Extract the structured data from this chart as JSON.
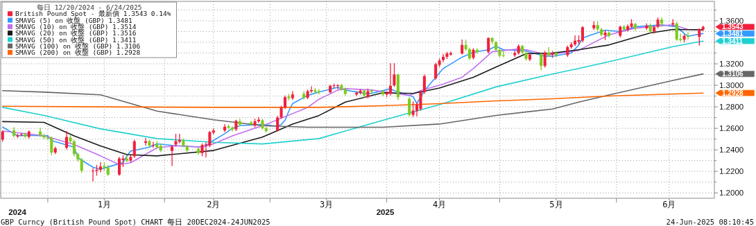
{
  "chart_data": {
    "type": "candlestick",
    "legend_title": "每日 12/20/2024 - 6/24/2025",
    "legend": "top left",
    "grid": true,
    "xlim": [
      "2024-12-19T12:00",
      "2025-06-27"
    ],
    "ylim": [
      1.195,
      1.378
    ],
    "xticks": [
      {
        "value": "2025-01-01",
        "label": null
      },
      {
        "value": "2025-01-16",
        "label": "1月"
      },
      {
        "value": "2025-02-01",
        "label": null
      },
      {
        "value": "2025-02-14",
        "label": "2月"
      },
      {
        "value": "2025-03-01",
        "label": null
      },
      {
        "value": "2025-03-16",
        "label": "3月"
      },
      {
        "value": "2025-04-01",
        "label": null
      },
      {
        "value": "2025-04-15",
        "label": "4月"
      },
      {
        "value": "2025-05-01",
        "label": null
      },
      {
        "value": "2025-05-16",
        "label": "5月"
      },
      {
        "value": "2025-06-01",
        "label": null
      },
      {
        "value": "2025-06-15",
        "label": "6月"
      }
    ],
    "yticks": [
      {
        "value": 1.2,
        "label": "1.2000"
      },
      {
        "value": 1.21,
        "label": null
      },
      {
        "value": 1.22,
        "label": "1.2200"
      },
      {
        "value": 1.23,
        "label": null
      },
      {
        "value": 1.24,
        "label": "1.2400"
      },
      {
        "value": 1.25,
        "label": null
      },
      {
        "value": 1.26,
        "label": "1.2600"
      },
      {
        "value": 1.27,
        "label": null
      },
      {
        "value": 1.28,
        "label": "1.2800"
      },
      {
        "value": 1.29,
        "label": null
      },
      {
        "value": 1.3,
        "label": "1.3000"
      },
      {
        "value": 1.31,
        "label": null
      },
      {
        "value": 1.32,
        "label": "1.3200"
      },
      {
        "value": 1.33,
        "label": null
      },
      {
        "value": 1.34,
        "label": null
      },
      {
        "value": 1.35,
        "label": null
      },
      {
        "value": 1.36,
        "label": "1.3600"
      },
      {
        "value": 1.37,
        "label": null
      }
    ],
    "series": [
      {
        "type": "candlestick",
        "name": "British Pound Spot - 最新價 1.3543 0.14%",
        "color": "#f0203c",
        "x": [
          "2024-12-20",
          "2024-12-23",
          "2024-12-24",
          "2024-12-25",
          "2024-12-26",
          "2024-12-27",
          "2024-12-30",
          "2024-12-31",
          "2025-01-01",
          "2025-01-02",
          "2025-01-03",
          "2025-01-06",
          "2025-01-07",
          "2025-01-08",
          "2025-01-09",
          "2025-01-10",
          "2025-01-13",
          "2025-01-14",
          "2025-01-15",
          "2025-01-16",
          "2025-01-17",
          "2025-01-20",
          "2025-01-21",
          "2025-01-22",
          "2025-01-23",
          "2025-01-24",
          "2025-01-27",
          "2025-01-28",
          "2025-01-29",
          "2025-01-30",
          "2025-01-31",
          "2025-02-03",
          "2025-02-04",
          "2025-02-05",
          "2025-02-06",
          "2025-02-07",
          "2025-02-10",
          "2025-02-11",
          "2025-02-12",
          "2025-02-13",
          "2025-02-14",
          "2025-02-17",
          "2025-02-18",
          "2025-02-19",
          "2025-02-20",
          "2025-02-21",
          "2025-02-24",
          "2025-02-25",
          "2025-02-26",
          "2025-02-27",
          "2025-02-28",
          "2025-03-03",
          "2025-03-04",
          "2025-03-05",
          "2025-03-06",
          "2025-03-07",
          "2025-03-10",
          "2025-03-11",
          "2025-03-12",
          "2025-03-13",
          "2025-03-14",
          "2025-03-17",
          "2025-03-18",
          "2025-03-19",
          "2025-03-20",
          "2025-03-21",
          "2025-03-24",
          "2025-03-25",
          "2025-03-26",
          "2025-03-27",
          "2025-03-28",
          "2025-03-31",
          "2025-04-01",
          "2025-04-02",
          "2025-04-03",
          "2025-04-04",
          "2025-04-07",
          "2025-04-08",
          "2025-04-09",
          "2025-04-10",
          "2025-04-11",
          "2025-04-14",
          "2025-04-15",
          "2025-04-16",
          "2025-04-17",
          "2025-04-18",
          "2025-04-21",
          "2025-04-22",
          "2025-04-23",
          "2025-04-24",
          "2025-04-25",
          "2025-04-28",
          "2025-04-29",
          "2025-04-30",
          "2025-05-01",
          "2025-05-02",
          "2025-05-05",
          "2025-05-06",
          "2025-05-07",
          "2025-05-08",
          "2025-05-09",
          "2025-05-12",
          "2025-05-13",
          "2025-05-14",
          "2025-05-15",
          "2025-05-16",
          "2025-05-19",
          "2025-05-20",
          "2025-05-21",
          "2025-05-22",
          "2025-05-23",
          "2025-05-26",
          "2025-05-27",
          "2025-05-28",
          "2025-05-29",
          "2025-05-30",
          "2025-06-02",
          "2025-06-03",
          "2025-06-04",
          "2025-06-05",
          "2025-06-06",
          "2025-06-09",
          "2025-06-10",
          "2025-06-11",
          "2025-06-12",
          "2025-06-13",
          "2025-06-16",
          "2025-06-17",
          "2025-06-18",
          "2025-06-19",
          "2025-06-20",
          "2025-06-23",
          "2025-06-24"
        ],
        "ohlc": [
          [
            1.2495,
            1.258,
            1.2475,
            1.257
          ],
          [
            1.2581,
            1.261,
            1.2515,
            1.2531
          ],
          [
            1.2525,
            1.255,
            1.251,
            1.2535
          ],
          [
            1.254,
            1.2555,
            1.253,
            1.2545
          ],
          [
            1.2545,
            1.256,
            1.251,
            1.2525
          ],
          [
            1.252,
            1.258,
            1.2505,
            1.257
          ],
          [
            1.257,
            1.2605,
            1.252,
            1.2535
          ],
          [
            1.2535,
            1.255,
            1.25,
            1.2515
          ],
          [
            1.2515,
            1.2525,
            1.2495,
            1.2505
          ],
          [
            1.251,
            1.2525,
            1.235,
            1.2375
          ],
          [
            1.2375,
            1.243,
            1.236,
            1.2415
          ],
          [
            1.242,
            1.2575,
            1.2405,
            1.252
          ],
          [
            1.2515,
            1.254,
            1.246,
            1.248
          ],
          [
            1.248,
            1.249,
            1.234,
            1.236
          ],
          [
            1.236,
            1.2375,
            1.229,
            1.231
          ],
          [
            1.231,
            1.2325,
            1.2185,
            1.2205
          ],
          [
            1.22,
            1.223,
            1.2106,
            1.2205
          ],
          [
            1.2205,
            1.226,
            1.216,
            1.2215
          ],
          [
            1.2215,
            1.2285,
            1.219,
            1.2245
          ],
          [
            1.225,
            1.228,
            1.221,
            1.2235
          ],
          [
            1.2235,
            1.226,
            1.216,
            1.217
          ],
          [
            1.217,
            1.2335,
            1.216,
            1.232
          ],
          [
            1.2305,
            1.235,
            1.224,
            1.232
          ],
          [
            1.232,
            1.2345,
            1.2285,
            1.23
          ],
          [
            1.23,
            1.235,
            1.2285,
            1.2335
          ],
          [
            1.234,
            1.2495,
            1.2325,
            1.248
          ],
          [
            1.2465,
            1.251,
            1.244,
            1.248
          ],
          [
            1.248,
            1.2495,
            1.2425,
            1.244
          ],
          [
            1.244,
            1.2475,
            1.242,
            1.2445
          ],
          [
            1.245,
            1.248,
            1.241,
            1.2425
          ],
          [
            1.2438,
            1.246,
            1.238,
            1.2394
          ],
          [
            1.239,
            1.2445,
            1.225,
            1.243
          ],
          [
            1.245,
            1.255,
            1.243,
            1.248
          ],
          [
            1.2475,
            1.255,
            1.246,
            1.249
          ],
          [
            1.249,
            1.2505,
            1.2425,
            1.244
          ],
          [
            1.243,
            1.2445,
            1.238,
            1.2395
          ],
          [
            1.241,
            1.242,
            1.2355,
            1.237
          ],
          [
            1.237,
            1.246,
            1.234,
            1.2445
          ],
          [
            1.244,
            1.247,
            1.233,
            1.245
          ],
          [
            1.244,
            1.2575,
            1.2425,
            1.2565
          ],
          [
            1.256,
            1.26,
            1.2545,
            1.258
          ],
          [
            1.258,
            1.264,
            1.2565,
            1.2615
          ],
          [
            1.262,
            1.2635,
            1.259,
            1.2605
          ],
          [
            1.2605,
            1.262,
            1.257,
            1.259
          ],
          [
            1.259,
            1.268,
            1.2575,
            1.267
          ],
          [
            1.2665,
            1.269,
            1.262,
            1.2635
          ],
          [
            1.2655,
            1.267,
            1.2625,
            1.264
          ],
          [
            1.2625,
            1.269,
            1.261,
            1.2665
          ],
          [
            1.2665,
            1.2706,
            1.265,
            1.268
          ],
          [
            1.2675,
            1.269,
            1.259,
            1.26
          ],
          [
            1.26,
            1.2615,
            1.256,
            1.2575
          ],
          [
            1.258,
            1.2715,
            1.257,
            1.27
          ],
          [
            1.27,
            1.281,
            1.269,
            1.2795
          ],
          [
            1.2795,
            1.2905,
            1.278,
            1.289
          ],
          [
            1.2895,
            1.292,
            1.286,
            1.288
          ],
          [
            1.288,
            1.2945,
            1.2865,
            1.2915
          ],
          [
            1.292,
            1.2945,
            1.287,
            1.2885
          ],
          [
            1.2885,
            1.296,
            1.287,
            1.2945
          ],
          [
            1.2945,
            1.299,
            1.293,
            1.2955
          ],
          [
            1.2955,
            1.2975,
            1.2925,
            1.294
          ],
          [
            1.2945,
            1.2965,
            1.2915,
            1.2935
          ],
          [
            1.2935,
            1.3005,
            1.2925,
            1.2995
          ],
          [
            1.2995,
            1.3015,
            1.2975,
            1.3
          ],
          [
            1.2995,
            1.301,
            1.2965,
            1.3
          ],
          [
            1.3,
            1.3015,
            1.295,
            1.2965
          ],
          [
            1.2965,
            1.298,
            1.2905,
            1.292
          ],
          [
            1.2915,
            1.2945,
            1.29,
            1.293
          ],
          [
            1.293,
            1.2965,
            1.2915,
            1.295
          ],
          [
            1.295,
            1.296,
            1.2885,
            1.2905
          ],
          [
            1.289,
            1.297,
            1.288,
            1.2945
          ],
          [
            1.295,
            1.2965,
            1.2925,
            1.294
          ],
          [
            1.2945,
            1.2955,
            1.29,
            1.2915
          ],
          [
            1.2915,
            1.2945,
            1.289,
            1.2925
          ],
          [
            1.292,
            1.3205,
            1.2905,
            1.2995
          ],
          [
            1.3,
            1.3205,
            1.2985,
            1.31
          ],
          [
            1.31,
            1.311,
            1.2865,
            1.289
          ],
          [
            1.2875,
            1.289,
            1.271,
            1.2725
          ],
          [
            1.2725,
            1.285,
            1.2705,
            1.2765
          ],
          [
            1.276,
            1.284,
            1.271,
            1.282
          ],
          [
            1.278,
            1.295,
            1.2765,
            1.2935
          ],
          [
            1.2935,
            1.31,
            1.292,
            1.3085
          ],
          [
            1.3065,
            1.321,
            1.305,
            1.3195
          ],
          [
            1.319,
            1.325,
            1.317,
            1.323
          ],
          [
            1.3235,
            1.329,
            1.3215,
            1.3265
          ],
          [
            1.3265,
            1.331,
            1.3245,
            1.3295
          ],
          [
            1.3285,
            1.3315,
            1.3275,
            1.33
          ],
          [
            1.3295,
            1.3425,
            1.3285,
            1.3375
          ],
          [
            1.3375,
            1.3425,
            1.332,
            1.3335
          ],
          [
            1.3335,
            1.335,
            1.3235,
            1.325
          ],
          [
            1.3255,
            1.3345,
            1.324,
            1.333
          ],
          [
            1.333,
            1.3345,
            1.3295,
            1.331
          ],
          [
            1.331,
            1.3445,
            1.3295,
            1.344
          ],
          [
            1.344,
            1.3445,
            1.3385,
            1.3405
          ],
          [
            1.34,
            1.341,
            1.3315,
            1.333
          ],
          [
            1.333,
            1.334,
            1.326,
            1.3275
          ],
          [
            1.328,
            1.332,
            1.326,
            1.3275
          ],
          [
            1.328,
            1.332,
            1.3265,
            1.33
          ],
          [
            1.33,
            1.338,
            1.3285,
            1.3365
          ],
          [
            1.3365,
            1.3375,
            1.329,
            1.3305
          ],
          [
            1.33,
            1.3315,
            1.323,
            1.3245
          ],
          [
            1.324,
            1.33,
            1.3225,
            1.3285
          ],
          [
            1.329,
            1.33,
            1.314,
            1.318
          ],
          [
            1.318,
            1.332,
            1.3165,
            1.3305
          ],
          [
            1.3305,
            1.3355,
            1.3265,
            1.328
          ],
          [
            1.3285,
            1.332,
            1.3255,
            1.33
          ],
          [
            1.33,
            1.3315,
            1.3265,
            1.328
          ],
          [
            1.328,
            1.337,
            1.3265,
            1.3355
          ],
          [
            1.3355,
            1.34,
            1.334,
            1.338
          ],
          [
            1.338,
            1.3465,
            1.3365,
            1.3415
          ],
          [
            1.3405,
            1.3465,
            1.338,
            1.342
          ],
          [
            1.3415,
            1.355,
            1.34,
            1.354
          ],
          [
            1.353,
            1.3595,
            1.3515,
            1.356
          ],
          [
            1.356,
            1.3595,
            1.3505,
            1.352
          ],
          [
            1.352,
            1.3535,
            1.3455,
            1.347
          ],
          [
            1.3465,
            1.351,
            1.342,
            1.349
          ],
          [
            1.349,
            1.35,
            1.3445,
            1.346
          ],
          [
            1.346,
            1.3555,
            1.3445,
            1.3545
          ],
          [
            1.3545,
            1.356,
            1.3505,
            1.352
          ],
          [
            1.3515,
            1.3565,
            1.35,
            1.355
          ],
          [
            1.3545,
            1.3615,
            1.353,
            1.3575
          ],
          [
            1.357,
            1.358,
            1.3505,
            1.353
          ],
          [
            1.353,
            1.3575,
            1.3515,
            1.3555
          ],
          [
            1.3555,
            1.3575,
            1.3485,
            1.35
          ],
          [
            1.35,
            1.3555,
            1.348,
            1.354
          ],
          [
            1.3545,
            1.363,
            1.353,
            1.361
          ],
          [
            1.361,
            1.363,
            1.3545,
            1.3575
          ],
          [
            1.357,
            1.3615,
            1.3545,
            1.358
          ],
          [
            1.3575,
            1.359,
            1.3415,
            1.3425
          ],
          [
            1.343,
            1.348,
            1.3405,
            1.342
          ],
          [
            1.3425,
            1.3475,
            1.34,
            1.346
          ],
          [
            1.346,
            1.3495,
            1.3425,
            1.345
          ],
          [
            1.345,
            1.353,
            1.337,
            1.352
          ],
          [
            1.352,
            1.3555,
            1.3505,
            1.3543
          ]
        ],
        "colors": [
          "#f0203c",
          "#7ccb1c",
          "#f0203c",
          "#f0203c",
          "#7ccb1c",
          "#f0203c",
          "#7ccb1c",
          "#7ccb1c",
          "#7ccb1c",
          "#7ccb1c",
          "#f0203c",
          "#f0203c",
          "#7ccb1c",
          "#7ccb1c",
          "#7ccb1c",
          "#7ccb1c",
          "#f0203c",
          "#f0203c",
          "#f0203c",
          "#7ccb1c",
          "#7ccb1c",
          "#f0203c",
          "#f0203c",
          "#7ccb1c",
          "#f0203c",
          "#f0203c",
          "#f0203c",
          "#7ccb1c",
          "#f0203c",
          "#7ccb1c",
          "#7ccb1c",
          "#f0203c",
          "#f0203c",
          "#f0203c",
          "#7ccb1c",
          "#7ccb1c",
          "#7ccb1c",
          "#f0203c",
          "#f0203c",
          "#f0203c",
          "#f0203c",
          "#f0203c",
          "#7ccb1c",
          "#7ccb1c",
          "#f0203c",
          "#7ccb1c",
          "#7ccb1c",
          "#f0203c",
          "#f0203c",
          "#7ccb1c",
          "#7ccb1c",
          "#f0203c",
          "#f0203c",
          "#f0203c",
          "#7ccb1c",
          "#f0203c",
          "#7ccb1c",
          "#f0203c",
          "#f0203c",
          "#7ccb1c",
          "#7ccb1c",
          "#f0203c",
          "#f0203c",
          "#f0203c",
          "#7ccb1c",
          "#7ccb1c",
          "#f0203c",
          "#f0203c",
          "#7ccb1c",
          "#f0203c",
          "#7ccb1c",
          "#7ccb1c",
          "#f0203c",
          "#f0203c",
          "#f0203c",
          "#7ccb1c",
          "#7ccb1c",
          "#f0203c",
          "#f0203c",
          "#f0203c",
          "#f0203c",
          "#f0203c",
          "#f0203c",
          "#f0203c",
          "#f0203c",
          "#f0203c",
          "#f0203c",
          "#7ccb1c",
          "#7ccb1c",
          "#f0203c",
          "#7ccb1c",
          "#f0203c",
          "#7ccb1c",
          "#7ccb1c",
          "#7ccb1c",
          "#7ccb1c",
          "#f0203c",
          "#f0203c",
          "#7ccb1c",
          "#7ccb1c",
          "#f0203c",
          "#7ccb1c",
          "#f0203c",
          "#7ccb1c",
          "#f0203c",
          "#7ccb1c",
          "#f0203c",
          "#f0203c",
          "#f0203c",
          "#f0203c",
          "#f0203c",
          "#f0203c",
          "#7ccb1c",
          "#7ccb1c",
          "#f0203c",
          "#7ccb1c",
          "#f0203c",
          "#7ccb1c",
          "#f0203c",
          "#f0203c",
          "#7ccb1c",
          "#f0203c",
          "#7ccb1c",
          "#f0203c",
          "#f0203c",
          "#7ccb1c",
          "#f0203c",
          "#7ccb1c",
          "#7ccb1c",
          "#f0203c",
          "#7ccb1c",
          "#f0203c",
          "#f0203c"
        ]
      },
      {
        "type": "line",
        "name": "SMAVG (5) on 收盤 (GBP) 1.3481",
        "color": "#3399ff",
        "x": [
          "2024-12-20",
          "2024-12-24",
          "2024-12-27",
          "2025-01-01",
          "2025-01-02",
          "2025-01-08",
          "2025-01-09",
          "2025-01-13",
          "2025-01-15",
          "2025-01-16",
          "2025-01-21",
          "2025-01-22",
          "2025-01-23",
          "2025-01-28",
          "2025-01-30",
          "2025-02-04",
          "2025-02-11",
          "2025-02-12",
          "2025-02-14",
          "2025-02-17",
          "2025-02-19",
          "2025-02-21",
          "2025-02-27",
          "2025-03-03",
          "2025-03-04",
          "2025-03-05",
          "2025-03-06",
          "2025-03-07",
          "2025-03-11",
          "2025-03-14",
          "2025-03-19",
          "2025-03-21",
          "2025-03-26",
          "2025-03-28",
          "2025-04-02",
          "2025-04-03",
          "2025-04-08",
          "2025-04-09",
          "2025-04-11",
          "2025-04-16",
          "2025-04-21",
          "2025-04-24",
          "2025-04-28",
          "2025-04-30",
          "2025-05-02",
          "2025-05-08",
          "2025-05-13",
          "2025-05-15",
          "2025-05-20",
          "2025-05-22",
          "2025-05-23",
          "2025-05-29",
          "2025-06-02",
          "2025-06-06",
          "2025-06-13",
          "2025-06-17",
          "2025-06-19",
          "2025-06-20",
          "2025-06-24"
        ],
        "values": [
          1.2612,
          1.2531,
          1.2535,
          1.2531,
          1.2487,
          1.2425,
          1.2325,
          1.2238,
          1.2219,
          1.2231,
          1.2281,
          1.2344,
          1.2388,
          1.2425,
          1.2456,
          1.2438,
          1.2425,
          1.2438,
          1.2488,
          1.255,
          1.26,
          1.2625,
          1.2637,
          1.2619,
          1.2637,
          1.2675,
          1.276,
          1.283,
          1.2906,
          1.2937,
          1.2981,
          1.2956,
          1.2925,
          1.2925,
          1.2969,
          1.295,
          1.2894,
          1.2831,
          1.295,
          1.3156,
          1.3262,
          1.3306,
          1.3331,
          1.3363,
          1.3331,
          1.3319,
          1.3269,
          1.3269,
          1.33,
          1.3375,
          1.344,
          1.3513,
          1.35,
          1.3544,
          1.3563,
          1.3544,
          1.3481,
          1.3456,
          1.3481
        ]
      },
      {
        "type": "line",
        "name": "SMAVG (10) on 收盤 (GBP) 1.3514",
        "color": "#c070f0",
        "x": [
          "2024-12-20",
          "2024-12-31",
          "2025-01-08",
          "2025-01-15",
          "2025-01-20",
          "2025-01-23",
          "2025-01-30",
          "2025-02-04",
          "2025-02-11",
          "2025-02-14",
          "2025-02-19",
          "2025-02-28",
          "2025-03-11",
          "2025-03-14",
          "2025-03-19",
          "2025-03-21",
          "2025-03-28",
          "2025-04-07",
          "2025-04-10",
          "2025-04-16",
          "2025-04-21",
          "2025-04-24",
          "2025-04-29",
          "2025-05-06",
          "2025-05-08",
          "2025-05-14",
          "2025-05-16",
          "2025-05-22",
          "2025-05-23",
          "2025-05-30",
          "2025-06-06",
          "2025-06-16",
          "2025-06-20",
          "2025-06-24"
        ],
        "values": [
          1.2575,
          1.2531,
          1.245,
          1.2344,
          1.2262,
          1.228,
          1.2419,
          1.2438,
          1.2425,
          1.2456,
          1.253,
          1.2637,
          1.2794,
          1.287,
          1.2956,
          1.2969,
          1.2956,
          1.2906,
          1.295,
          1.3012,
          1.3075,
          1.3156,
          1.3312,
          1.3338,
          1.3331,
          1.3281,
          1.3294,
          1.3325,
          1.3344,
          1.3469,
          1.3531,
          1.3563,
          1.3519,
          1.3514
        ]
      },
      {
        "type": "line",
        "name": "SMAVG (20) on 收盤 (GBP) 1.3516",
        "color": "#1a1a1a",
        "x": [
          "2024-12-20",
          "2024-12-31",
          "2025-01-08",
          "2025-01-15",
          "2025-01-22",
          "2025-01-30",
          "2025-02-14",
          "2025-02-27",
          "2025-03-07",
          "2025-03-14",
          "2025-03-21",
          "2025-03-31",
          "2025-04-08",
          "2025-04-15",
          "2025-04-24",
          "2025-04-30",
          "2025-05-08",
          "2025-05-15",
          "2025-05-22",
          "2025-05-30",
          "2025-06-10",
          "2025-06-16",
          "2025-06-24"
        ],
        "values": [
          1.2663,
          1.2656,
          1.253,
          1.2437,
          1.2356,
          1.2344,
          1.2394,
          1.2519,
          1.264,
          1.2719,
          1.2844,
          1.2931,
          1.2925,
          1.2975,
          1.3075,
          1.3169,
          1.3294,
          1.33,
          1.3331,
          1.3375,
          1.3487,
          1.3519,
          1.3516
        ]
      },
      {
        "type": "line",
        "name": "SMAVG (50) on 收盤 (GBP) 1.3411",
        "color": "#20d0d0",
        "x": [
          "2024-12-20",
          "2024-12-31",
          "2025-01-15",
          "2025-01-30",
          "2025-02-14",
          "2025-02-27",
          "2025-03-14",
          "2025-03-31",
          "2025-04-15",
          "2025-04-30",
          "2025-05-15",
          "2025-05-22",
          "2025-05-30",
          "2025-06-16",
          "2025-06-24"
        ],
        "values": [
          1.2795,
          1.272,
          1.2595,
          1.2505,
          1.247,
          1.2455,
          1.2505,
          1.2675,
          1.282,
          1.2985,
          1.3105,
          1.3156,
          1.322,
          1.336,
          1.3411
        ]
      },
      {
        "type": "line",
        "name": "SMAVG (100) on 收盤 (GBP) 1.3106",
        "color": "#666666",
        "x": [
          "2024-12-20",
          "2024-12-31",
          "2025-01-15",
          "2025-01-30",
          "2025-02-14",
          "2025-02-27",
          "2025-03-11",
          "2025-03-31",
          "2025-04-15",
          "2025-04-30",
          "2025-05-15",
          "2025-05-22",
          "2025-05-30",
          "2025-06-16",
          "2025-06-24"
        ],
        "values": [
          1.295,
          1.2937,
          1.2912,
          1.276,
          1.268,
          1.2625,
          1.261,
          1.261,
          1.264,
          1.272,
          1.278,
          1.2844,
          1.291,
          1.3045,
          1.3106
        ]
      },
      {
        "type": "line",
        "name": "SMAVG (200) on 收盤 (GBP) 1.2928",
        "color": "#ff6600",
        "x": [
          "2024-12-20",
          "2025-01-15",
          "2025-02-14",
          "2025-03-14",
          "2025-03-31",
          "2025-04-15",
          "2025-04-30",
          "2025-05-15",
          "2025-05-30",
          "2025-06-24"
        ],
        "values": [
          1.2805,
          1.28,
          1.2795,
          1.2795,
          1.281,
          1.283,
          1.2855,
          1.2875,
          1.29,
          1.2928
        ]
      }
    ],
    "annotations": [
      {
        "text": "1.3543",
        "x": "2025-06-24",
        "y": 1.3543
      },
      {
        "text": "1.3481",
        "x": "2025-06-24",
        "y": 1.3481
      },
      {
        "text": "1.3411",
        "x": "2025-06-24",
        "y": 1.3411
      },
      {
        "text": "1.3106",
        "x": "2025-06-24",
        "y": 1.3106
      },
      {
        "text": "1.2928",
        "x": "2025-06-24",
        "y": 1.2928
      },
      "2024",
      "2025",
      "GBP Curncy (British Pound Spot) CHART 每日 20DEC2024-24JUN2025",
      "24-Jun-2025 08:10:45"
    ]
  }
}
